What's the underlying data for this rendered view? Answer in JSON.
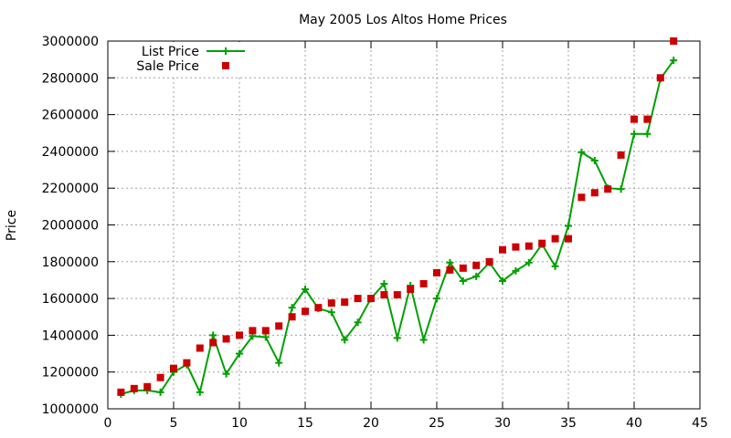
{
  "chart_data": {
    "type": "line",
    "title": "May 2005 Los Altos Home Prices",
    "xlabel": "",
    "ylabel": "Price",
    "xlim": [
      0,
      45
    ],
    "ylim": [
      1000000,
      3000000
    ],
    "x_ticks": [
      "0",
      "5",
      "10",
      "15",
      "20",
      "25",
      "30",
      "35",
      "40",
      "45"
    ],
    "y_ticks": [
      "1000000",
      "1200000",
      "1400000",
      "1600000",
      "1800000",
      "2000000",
      "2200000",
      "2400000",
      "2600000",
      "2800000",
      "3000000"
    ],
    "grid": true,
    "legend_position": "top-left",
    "series": [
      {
        "name": "List Price",
        "style": "line-with-plus-markers",
        "color": "#00a000",
        "x": [
          1,
          2,
          3,
          4,
          5,
          6,
          7,
          8,
          9,
          10,
          11,
          12,
          13,
          14,
          15,
          16,
          17,
          18,
          19,
          20,
          21,
          22,
          23,
          24,
          25,
          26,
          27,
          28,
          29,
          30,
          31,
          32,
          33,
          34,
          35,
          36,
          37,
          38,
          39,
          40,
          41,
          42,
          43
        ],
        "values": [
          1080000,
          1100000,
          1100000,
          1090000,
          1200000,
          1240000,
          1090000,
          1400000,
          1190000,
          1300000,
          1395000,
          1390000,
          1250000,
          1550000,
          1650000,
          1545000,
          1525000,
          1375000,
          1470000,
          1600000,
          1680000,
          1385000,
          1670000,
          1375000,
          1600000,
          1795000,
          1695000,
          1720000,
          1795000,
          1695000,
          1750000,
          1795000,
          1895000,
          1775000,
          1995000,
          2395000,
          2350000,
          2200000,
          2195000,
          2495000,
          2495000,
          2795000,
          2895000
        ]
      },
      {
        "name": "Sale Price",
        "style": "square-markers",
        "color": "#cc0000",
        "x": [
          1,
          2,
          3,
          4,
          5,
          6,
          7,
          8,
          9,
          10,
          11,
          12,
          13,
          14,
          15,
          16,
          17,
          18,
          19,
          20,
          21,
          22,
          23,
          24,
          25,
          26,
          27,
          28,
          29,
          30,
          31,
          32,
          33,
          34,
          35,
          36,
          37,
          38,
          39,
          40,
          41,
          42,
          43
        ],
        "values": [
          1090000,
          1110000,
          1120000,
          1170000,
          1220000,
          1250000,
          1330000,
          1360000,
          1380000,
          1400000,
          1425000,
          1425000,
          1450000,
          1500000,
          1530000,
          1550000,
          1575000,
          1580000,
          1600000,
          1600000,
          1620000,
          1620000,
          1650000,
          1680000,
          1740000,
          1755000,
          1765000,
          1780000,
          1800000,
          1865000,
          1880000,
          1885000,
          1900000,
          1925000,
          1925000,
          2150000,
          2175000,
          2195000,
          2380000,
          2575000,
          2575000,
          2800000,
          3000000
        ]
      }
    ]
  }
}
